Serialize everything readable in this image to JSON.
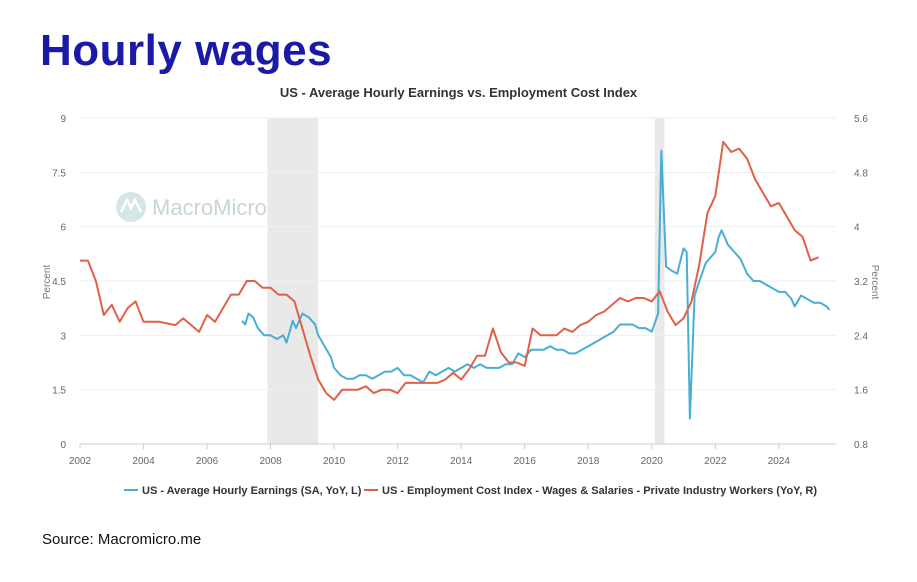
{
  "slide": {
    "title": "Hourly wages",
    "source": "Source: Macromicro.me"
  },
  "watermark": "MacroMicro",
  "colors": {
    "title": "#1a1aa6",
    "ahe": "#4aaed4",
    "eci": "#e0604a",
    "recession": "#e9e9e9",
    "grid": "#eeeeee"
  },
  "chart_data": {
    "type": "line",
    "title": "US - Average Hourly Earnings vs. Employment Cost Index",
    "left_axis": {
      "label": "Percent",
      "range": [
        0,
        9
      ],
      "ticks": [
        "0",
        "1.5",
        "3",
        "4.5",
        "6",
        "7.5",
        "9"
      ]
    },
    "right_axis": {
      "label": "Percent",
      "range": [
        0.8,
        5.6
      ],
      "ticks": [
        "0.8",
        "1.6",
        "2.4",
        "3.2",
        "4",
        "4.8",
        "5.6"
      ]
    },
    "x_axis": {
      "range": [
        2002,
        2025.8
      ],
      "ticks": [
        "2002",
        "2004",
        "2006",
        "2008",
        "2010",
        "2012",
        "2014",
        "2016",
        "2018",
        "2020",
        "2022",
        "2024"
      ]
    },
    "recessions": [
      [
        2007.9,
        2009.5
      ],
      [
        2020.1,
        2020.4
      ]
    ],
    "grid": "horizontal",
    "legend_position": "bottom",
    "series": [
      {
        "name": "US - Average Hourly Earnings (SA, YoY, L)",
        "axis": "left",
        "color": "#4aaed4",
        "points": [
          [
            2007.1,
            3.4
          ],
          [
            2007.2,
            3.3
          ],
          [
            2007.3,
            3.6
          ],
          [
            2007.45,
            3.5
          ],
          [
            2007.6,
            3.2
          ],
          [
            2007.8,
            3.0
          ],
          [
            2008.0,
            3.0
          ],
          [
            2008.2,
            2.9
          ],
          [
            2008.4,
            3.0
          ],
          [
            2008.5,
            2.8
          ],
          [
            2008.7,
            3.4
          ],
          [
            2008.8,
            3.2
          ],
          [
            2009.0,
            3.6
          ],
          [
            2009.2,
            3.5
          ],
          [
            2009.4,
            3.3
          ],
          [
            2009.5,
            3.0
          ],
          [
            2009.7,
            2.7
          ],
          [
            2009.9,
            2.4
          ],
          [
            2010.0,
            2.1
          ],
          [
            2010.2,
            1.9
          ],
          [
            2010.4,
            1.8
          ],
          [
            2010.6,
            1.8
          ],
          [
            2010.8,
            1.9
          ],
          [
            2011.0,
            1.9
          ],
          [
            2011.2,
            1.8
          ],
          [
            2011.4,
            1.9
          ],
          [
            2011.6,
            2.0
          ],
          [
            2011.8,
            2.0
          ],
          [
            2012.0,
            2.1
          ],
          [
            2012.2,
            1.9
          ],
          [
            2012.4,
            1.9
          ],
          [
            2012.6,
            1.8
          ],
          [
            2012.8,
            1.7
          ],
          [
            2013.0,
            2.0
          ],
          [
            2013.2,
            1.9
          ],
          [
            2013.4,
            2.0
          ],
          [
            2013.6,
            2.1
          ],
          [
            2013.8,
            2.0
          ],
          [
            2014.0,
            2.1
          ],
          [
            2014.2,
            2.2
          ],
          [
            2014.4,
            2.1
          ],
          [
            2014.6,
            2.2
          ],
          [
            2014.8,
            2.1
          ],
          [
            2015.0,
            2.1
          ],
          [
            2015.2,
            2.1
          ],
          [
            2015.4,
            2.2
          ],
          [
            2015.6,
            2.2
          ],
          [
            2015.8,
            2.5
          ],
          [
            2016.0,
            2.4
          ],
          [
            2016.2,
            2.6
          ],
          [
            2016.4,
            2.6
          ],
          [
            2016.6,
            2.6
          ],
          [
            2016.8,
            2.7
          ],
          [
            2017.0,
            2.6
          ],
          [
            2017.2,
            2.6
          ],
          [
            2017.4,
            2.5
          ],
          [
            2017.6,
            2.5
          ],
          [
            2017.8,
            2.6
          ],
          [
            2018.0,
            2.7
          ],
          [
            2018.2,
            2.8
          ],
          [
            2018.4,
            2.9
          ],
          [
            2018.6,
            3.0
          ],
          [
            2018.8,
            3.1
          ],
          [
            2019.0,
            3.3
          ],
          [
            2019.2,
            3.3
          ],
          [
            2019.4,
            3.3
          ],
          [
            2019.6,
            3.2
          ],
          [
            2019.8,
            3.2
          ],
          [
            2020.0,
            3.1
          ],
          [
            2020.2,
            3.6
          ],
          [
            2020.3,
            8.1
          ],
          [
            2020.45,
            4.9
          ],
          [
            2020.6,
            4.8
          ],
          [
            2020.8,
            4.7
          ],
          [
            2021.0,
            5.4
          ],
          [
            2021.1,
            5.3
          ],
          [
            2021.2,
            0.7
          ],
          [
            2021.35,
            4.1
          ],
          [
            2021.5,
            4.5
          ],
          [
            2021.7,
            5.0
          ],
          [
            2021.9,
            5.2
          ],
          [
            2022.0,
            5.3
          ],
          [
            2022.1,
            5.7
          ],
          [
            2022.2,
            5.9
          ],
          [
            2022.4,
            5.5
          ],
          [
            2022.6,
            5.3
          ],
          [
            2022.8,
            5.1
          ],
          [
            2023.0,
            4.7
          ],
          [
            2023.2,
            4.5
          ],
          [
            2023.4,
            4.5
          ],
          [
            2023.6,
            4.4
          ],
          [
            2023.8,
            4.3
          ],
          [
            2024.0,
            4.2
          ],
          [
            2024.2,
            4.2
          ],
          [
            2024.4,
            4.0
          ],
          [
            2024.5,
            3.8
          ],
          [
            2024.7,
            4.1
          ],
          [
            2024.9,
            4.0
          ],
          [
            2025.1,
            3.9
          ],
          [
            2025.3,
            3.9
          ],
          [
            2025.5,
            3.8
          ],
          [
            2025.6,
            3.7
          ]
        ]
      },
      {
        "name": "US - Employment Cost Index - Wages & Salaries - Private Industry Workers (YoY, R)",
        "axis": "right",
        "color": "#e0604a",
        "points": [
          [
            2002.0,
            3.5
          ],
          [
            2002.25,
            3.5
          ],
          [
            2002.5,
            3.2
          ],
          [
            2002.75,
            2.7
          ],
          [
            2003.0,
            2.85
          ],
          [
            2003.25,
            2.6
          ],
          [
            2003.5,
            2.8
          ],
          [
            2003.75,
            2.9
          ],
          [
            2004.0,
            2.6
          ],
          [
            2004.5,
            2.6
          ],
          [
            2005.0,
            2.55
          ],
          [
            2005.25,
            2.65
          ],
          [
            2005.5,
            2.55
          ],
          [
            2005.75,
            2.45
          ],
          [
            2006.0,
            2.7
          ],
          [
            2006.25,
            2.6
          ],
          [
            2006.5,
            2.8
          ],
          [
            2006.75,
            3.0
          ],
          [
            2007.0,
            3.0
          ],
          [
            2007.25,
            3.2
          ],
          [
            2007.5,
            3.2
          ],
          [
            2007.75,
            3.1
          ],
          [
            2008.0,
            3.1
          ],
          [
            2008.25,
            3.0
          ],
          [
            2008.5,
            3.0
          ],
          [
            2008.75,
            2.9
          ],
          [
            2009.0,
            2.5
          ],
          [
            2009.25,
            2.1
          ],
          [
            2009.5,
            1.75
          ],
          [
            2009.75,
            1.55
          ],
          [
            2010.0,
            1.45
          ],
          [
            2010.25,
            1.6
          ],
          [
            2010.5,
            1.6
          ],
          [
            2010.75,
            1.6
          ],
          [
            2011.0,
            1.65
          ],
          [
            2011.25,
            1.55
          ],
          [
            2011.5,
            1.6
          ],
          [
            2011.75,
            1.6
          ],
          [
            2012.0,
            1.55
          ],
          [
            2012.25,
            1.7
          ],
          [
            2012.5,
            1.7
          ],
          [
            2012.75,
            1.7
          ],
          [
            2013.0,
            1.7
          ],
          [
            2013.25,
            1.7
          ],
          [
            2013.5,
            1.75
          ],
          [
            2013.75,
            1.85
          ],
          [
            2014.0,
            1.75
          ],
          [
            2014.25,
            1.9
          ],
          [
            2014.5,
            2.1
          ],
          [
            2014.75,
            2.1
          ],
          [
            2015.0,
            2.5
          ],
          [
            2015.25,
            2.15
          ],
          [
            2015.5,
            2.0
          ],
          [
            2015.75,
            2.0
          ],
          [
            2016.0,
            1.95
          ],
          [
            2016.25,
            2.5
          ],
          [
            2016.5,
            2.4
          ],
          [
            2016.75,
            2.4
          ],
          [
            2017.0,
            2.4
          ],
          [
            2017.25,
            2.5
          ],
          [
            2017.5,
            2.45
          ],
          [
            2017.75,
            2.55
          ],
          [
            2018.0,
            2.6
          ],
          [
            2018.25,
            2.7
          ],
          [
            2018.5,
            2.75
          ],
          [
            2018.75,
            2.85
          ],
          [
            2019.0,
            2.95
          ],
          [
            2019.25,
            2.9
          ],
          [
            2019.5,
            2.95
          ],
          [
            2019.75,
            2.95
          ],
          [
            2020.0,
            2.9
          ],
          [
            2020.25,
            3.05
          ],
          [
            2020.5,
            2.75
          ],
          [
            2020.75,
            2.55
          ],
          [
            2021.0,
            2.65
          ],
          [
            2021.25,
            2.9
          ],
          [
            2021.5,
            3.45
          ],
          [
            2021.75,
            4.2
          ],
          [
            2022.0,
            4.45
          ],
          [
            2022.25,
            5.25
          ],
          [
            2022.5,
            5.1
          ],
          [
            2022.75,
            5.15
          ],
          [
            2023.0,
            5.0
          ],
          [
            2023.25,
            4.7
          ],
          [
            2023.5,
            4.5
          ],
          [
            2023.75,
            4.3
          ],
          [
            2024.0,
            4.35
          ],
          [
            2024.25,
            4.15
          ],
          [
            2024.5,
            3.95
          ],
          [
            2024.75,
            3.85
          ],
          [
            2025.0,
            3.5
          ],
          [
            2025.25,
            3.55
          ]
        ]
      }
    ]
  }
}
